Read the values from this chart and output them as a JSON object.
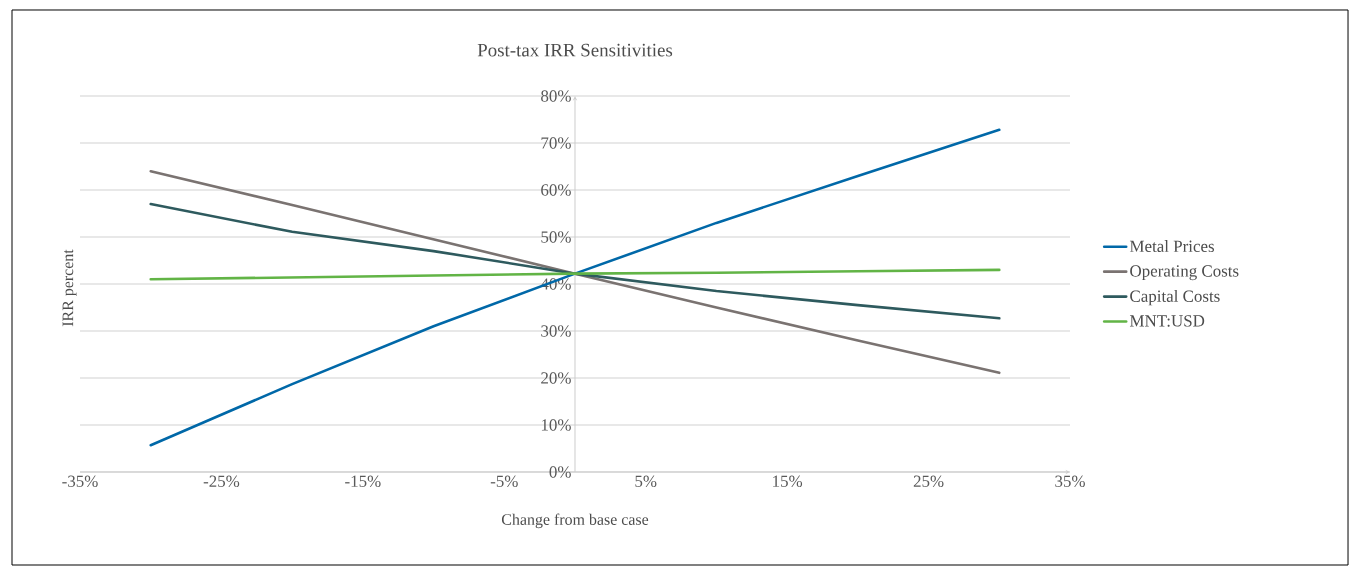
{
  "chart_data": {
    "type": "line",
    "title": "Post-tax IRR Sensitivities",
    "xlabel": "Change from base case",
    "ylabel": "IRR percent",
    "x": [
      -30,
      -20,
      -10,
      0,
      10,
      20,
      30
    ],
    "series": [
      {
        "name": "Metal Prices",
        "color": "#0068a8",
        "values": [
          5.7,
          18.7,
          31,
          42.2,
          53,
          63,
          72.8
        ]
      },
      {
        "name": "Operating Costs",
        "color": "#7a7371",
        "values": [
          64,
          56.8,
          49.5,
          42.2,
          35,
          28,
          21.1
        ]
      },
      {
        "name": "Capital Costs",
        "color": "#2e5a5e",
        "values": [
          57,
          51.1,
          47,
          42.2,
          38.5,
          35.5,
          32.7
        ]
      },
      {
        "name": "MNT:USD",
        "color": "#62b446",
        "values": [
          41,
          41.4,
          41.8,
          42.2,
          42.4,
          42.7,
          43
        ]
      }
    ],
    "xlim": [
      -35,
      35
    ],
    "ylim": [
      0,
      80
    ],
    "xticks": [
      {
        "value": -35,
        "label": "-35%"
      },
      {
        "value": -25,
        "label": "-25%"
      },
      {
        "value": -15,
        "label": "-15%"
      },
      {
        "value": -5,
        "label": "-5%"
      },
      {
        "value": 5,
        "label": "5%"
      },
      {
        "value": 15,
        "label": "15%"
      },
      {
        "value": 25,
        "label": "25%"
      },
      {
        "value": 35,
        "label": "35%"
      }
    ],
    "yticks": [
      {
        "value": 0,
        "label": "0%"
      },
      {
        "value": 10,
        "label": "10%"
      },
      {
        "value": 20,
        "label": "20%"
      },
      {
        "value": 30,
        "label": "30%"
      },
      {
        "value": 40,
        "label": "40%"
      },
      {
        "value": 50,
        "label": "50%"
      },
      {
        "value": 60,
        "label": "60%"
      },
      {
        "value": 70,
        "label": "70%"
      },
      {
        "value": 80,
        "label": "80%"
      }
    ],
    "grid": "y",
    "legend": "right",
    "marker": "none",
    "line_style": "solid"
  }
}
